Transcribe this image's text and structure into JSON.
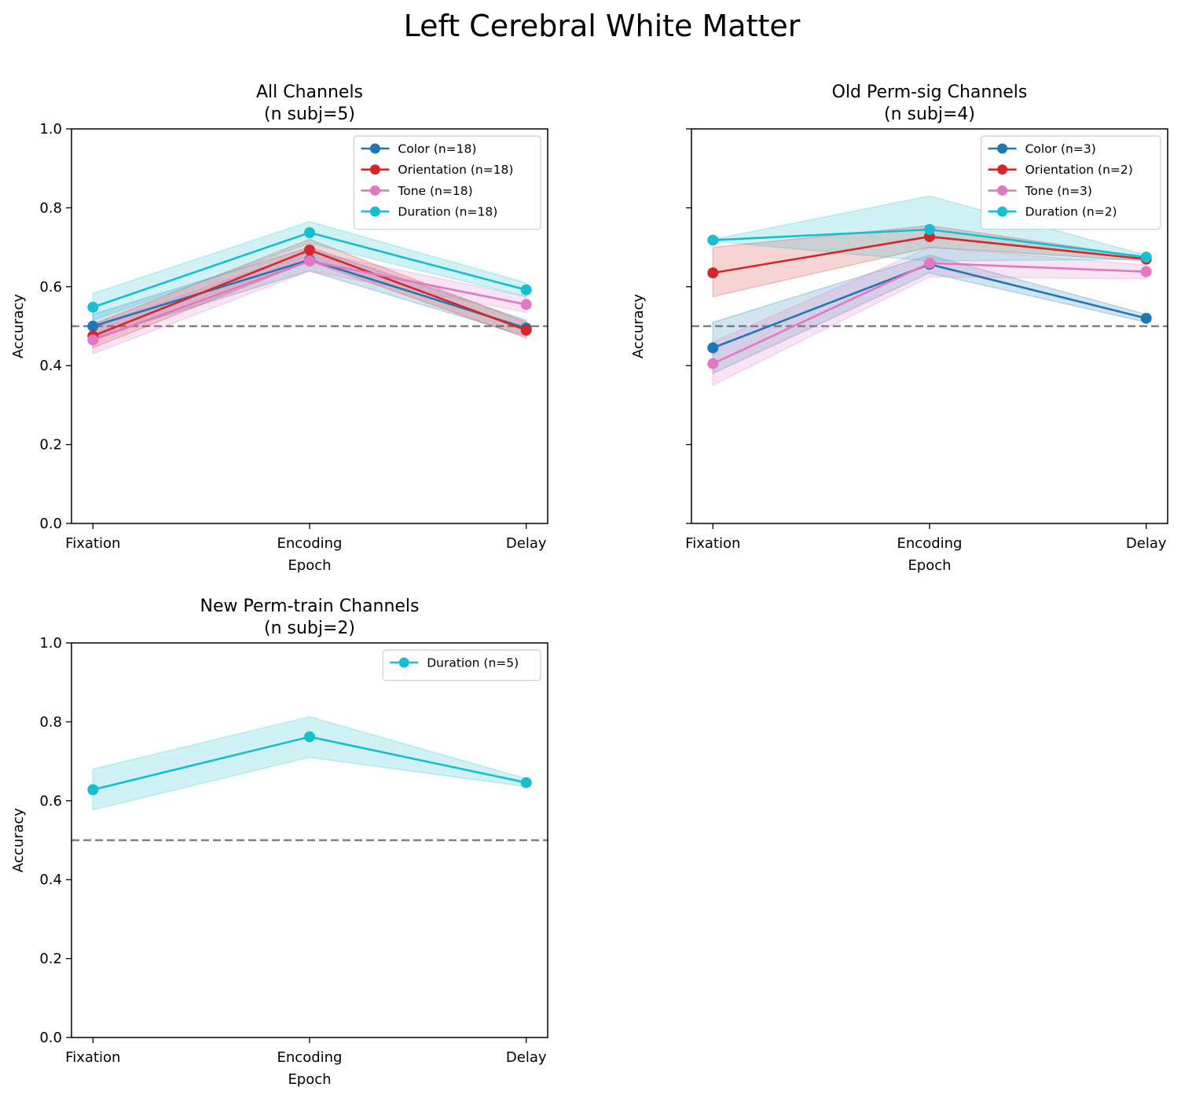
{
  "figure": {
    "suptitle": "Left Cerebral White Matter"
  },
  "colors": {
    "Color": "#1f77b4",
    "Orientation": "#d62728",
    "Tone": "#e377c2",
    "Duration": "#17becf",
    "chance_line": "#808080"
  },
  "chart_data": [
    {
      "type": "line",
      "title_line1": "All Channels",
      "title_line2": "(n subj=5)",
      "xlabel": "Epoch",
      "ylabel": "Accuracy",
      "show_ytick_labels": true,
      "categories": [
        "Fixation",
        "Encoding",
        "Delay"
      ],
      "ylim": [
        0,
        1.0
      ],
      "yticks": [
        "0.0",
        "0.2",
        "0.4",
        "0.6",
        "0.8",
        "1.0"
      ],
      "chance_level": 0.5,
      "legend_position": "top-right",
      "series": [
        {
          "name": "Color (n=18)",
          "color_key": "Color",
          "values": [
            0.5,
            0.668,
            0.495
          ],
          "lower": [
            0.47,
            0.64,
            0.475
          ],
          "upper": [
            0.53,
            0.7,
            0.515
          ]
        },
        {
          "name": "Orientation (n=18)",
          "color_key": "Orientation",
          "values": [
            0.475,
            0.693,
            0.49
          ],
          "lower": [
            0.445,
            0.665,
            0.47
          ],
          "upper": [
            0.505,
            0.72,
            0.51
          ]
        },
        {
          "name": "Tone (n=18)",
          "color_key": "Tone",
          "values": [
            0.465,
            0.665,
            0.555
          ],
          "lower": [
            0.43,
            0.64,
            0.535
          ],
          "upper": [
            0.5,
            0.69,
            0.575
          ]
        },
        {
          "name": "Duration (n=18)",
          "color_key": "Duration",
          "values": [
            0.548,
            0.737,
            0.592
          ],
          "lower": [
            0.515,
            0.71,
            0.575
          ],
          "upper": [
            0.583,
            0.765,
            0.61
          ]
        }
      ]
    },
    {
      "type": "line",
      "title_line1": "Old Perm-sig Channels",
      "title_line2": "(n subj=4)",
      "xlabel": "Epoch",
      "ylabel": "Accuracy",
      "show_ytick_labels": false,
      "categories": [
        "Fixation",
        "Encoding",
        "Delay"
      ],
      "ylim": [
        0,
        1.0
      ],
      "yticks": [
        "0.0",
        "0.2",
        "0.4",
        "0.6",
        "0.8",
        "1.0"
      ],
      "chance_level": 0.5,
      "legend_position": "top-right",
      "series": [
        {
          "name": "Color (n=3)",
          "color_key": "Color",
          "values": [
            0.445,
            0.657,
            0.52
          ],
          "lower": [
            0.38,
            0.635,
            0.51
          ],
          "upper": [
            0.51,
            0.68,
            0.53
          ]
        },
        {
          "name": "Orientation (n=2)",
          "color_key": "Orientation",
          "values": [
            0.635,
            0.727,
            0.67
          ],
          "lower": [
            0.575,
            0.7,
            0.665
          ],
          "upper": [
            0.7,
            0.755,
            0.675
          ]
        },
        {
          "name": "Tone (n=3)",
          "color_key": "Tone",
          "values": [
            0.405,
            0.66,
            0.638
          ],
          "lower": [
            0.35,
            0.625,
            0.62
          ],
          "upper": [
            0.46,
            0.7,
            0.655
          ]
        },
        {
          "name": "Duration (n=2)",
          "color_key": "Duration",
          "values": [
            0.718,
            0.745,
            0.675
          ],
          "lower": [
            0.715,
            0.665,
            0.67
          ],
          "upper": [
            0.72,
            0.83,
            0.68
          ]
        }
      ]
    },
    {
      "type": "line",
      "title_line1": "New Perm-train Channels",
      "title_line2": "(n subj=2)",
      "xlabel": "Epoch",
      "ylabel": "Accuracy",
      "show_ytick_labels": true,
      "categories": [
        "Fixation",
        "Encoding",
        "Delay"
      ],
      "ylim": [
        0,
        1.0
      ],
      "yticks": [
        "0.0",
        "0.2",
        "0.4",
        "0.6",
        "0.8",
        "1.0"
      ],
      "chance_level": 0.5,
      "legend_position": "top-right",
      "series": [
        {
          "name": "Duration (n=5)",
          "color_key": "Duration",
          "values": [
            0.628,
            0.762,
            0.646
          ],
          "lower": [
            0.577,
            0.71,
            0.636
          ],
          "upper": [
            0.68,
            0.813,
            0.656
          ]
        }
      ]
    }
  ]
}
